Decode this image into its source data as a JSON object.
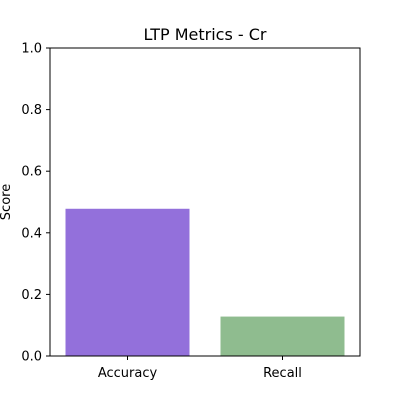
{
  "chart_data": {
    "type": "bar",
    "title": "LTP Metrics - Cr",
    "xlabel": "",
    "ylabel": "Score",
    "categories": [
      "Accuracy",
      "Recall"
    ],
    "values": [
      0.478,
      0.128
    ],
    "colors": [
      "#9370db",
      "#8fbc8f"
    ],
    "ylim": [
      0,
      1
    ],
    "yticks": [
      "0.0",
      "0.2",
      "0.4",
      "0.6",
      "0.8",
      "1.0"
    ],
    "grid": false,
    "legend": "none"
  }
}
